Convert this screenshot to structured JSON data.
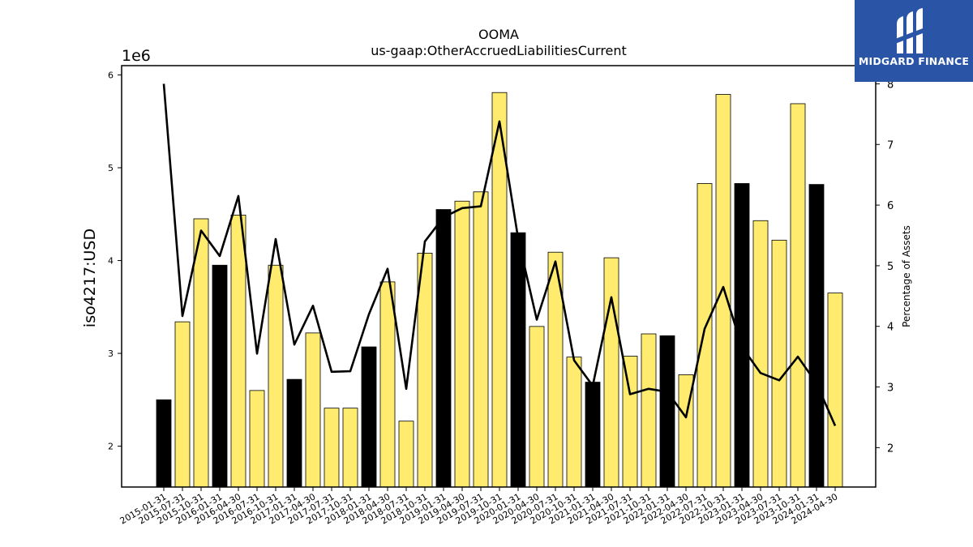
{
  "header": {
    "title": "OOMA",
    "subtitle": "us-gaap:OtherAccruedLiabilitiesCurrent"
  },
  "logo": {
    "text": "MIDGARD FINANCE",
    "icon": "midgard-logo-icon",
    "background": "#2a55a7"
  },
  "colors": {
    "highlight_bar": "#000000",
    "normal_bar": "#ffec6e",
    "line": "#000000"
  },
  "chart_data": {
    "type": "bar",
    "title": "OOMA",
    "subtitle": "us-gaap:OtherAccruedLiabilitiesCurrent",
    "ylabel": "iso4217:USD",
    "y_multiplier_label": "1e6",
    "y2label": "Percentage of Assets",
    "ylim": [
      1.56,
      6.1
    ],
    "y2lim": [
      1.35,
      8.3
    ],
    "yticks": [
      2,
      3,
      4,
      5,
      6
    ],
    "y2ticks": [
      2,
      3,
      4,
      5,
      6,
      7,
      8
    ],
    "grid": false,
    "categories": [
      "2015-01-31",
      "2015-07-31",
      "2015-10-31",
      "2016-01-31",
      "2016-04-30",
      "2016-07-31",
      "2016-10-31",
      "2017-01-31",
      "2017-04-30",
      "2017-07-31",
      "2017-10-31",
      "2018-01-31",
      "2018-04-30",
      "2018-07-31",
      "2018-10-31",
      "2019-01-31",
      "2019-04-30",
      "2019-07-31",
      "2019-10-31",
      "2020-01-31",
      "2020-04-30",
      "2020-07-31",
      "2020-10-31",
      "2021-01-31",
      "2021-04-30",
      "2021-07-31",
      "2021-10-31",
      "2022-01-31",
      "2022-04-30",
      "2022-07-31",
      "2022-10-31",
      "2023-01-31",
      "2023-04-30",
      "2023-07-31",
      "2023-10-31",
      "2024-01-31",
      "2024-04-30"
    ],
    "series": [
      {
        "type": "bar",
        "axis": "left",
        "values": [
          2.5,
          3.34,
          4.45,
          3.95,
          4.49,
          2.6,
          3.95,
          2.72,
          3.22,
          2.41,
          2.41,
          3.07,
          3.77,
          2.27,
          4.08,
          4.55,
          4.64,
          4.74,
          5.81,
          4.3,
          3.29,
          4.09,
          2.96,
          2.69,
          4.03,
          2.97,
          3.21,
          3.19,
          2.77,
          4.83,
          5.79,
          4.83,
          4.43,
          4.22,
          5.69,
          4.82,
          3.65
        ],
        "highlight": [
          true,
          false,
          false,
          true,
          false,
          false,
          false,
          true,
          false,
          false,
          false,
          true,
          false,
          false,
          false,
          true,
          false,
          false,
          false,
          true,
          false,
          false,
          false,
          true,
          false,
          false,
          false,
          true,
          false,
          false,
          false,
          true,
          false,
          false,
          false,
          true,
          false
        ]
      },
      {
        "type": "line",
        "axis": "right",
        "values": [
          8.0,
          4.17,
          5.58,
          5.16,
          6.15,
          3.55,
          5.44,
          3.7,
          4.34,
          3.25,
          3.26,
          4.2,
          4.95,
          2.97,
          5.4,
          5.8,
          5.95,
          5.98,
          7.38,
          5.45,
          4.11,
          5.07,
          3.44,
          3.02,
          4.48,
          2.88,
          2.97,
          2.92,
          2.5,
          3.96,
          4.65,
          3.66,
          3.23,
          3.11,
          3.5,
          3.06,
          2.36
        ]
      }
    ]
  }
}
